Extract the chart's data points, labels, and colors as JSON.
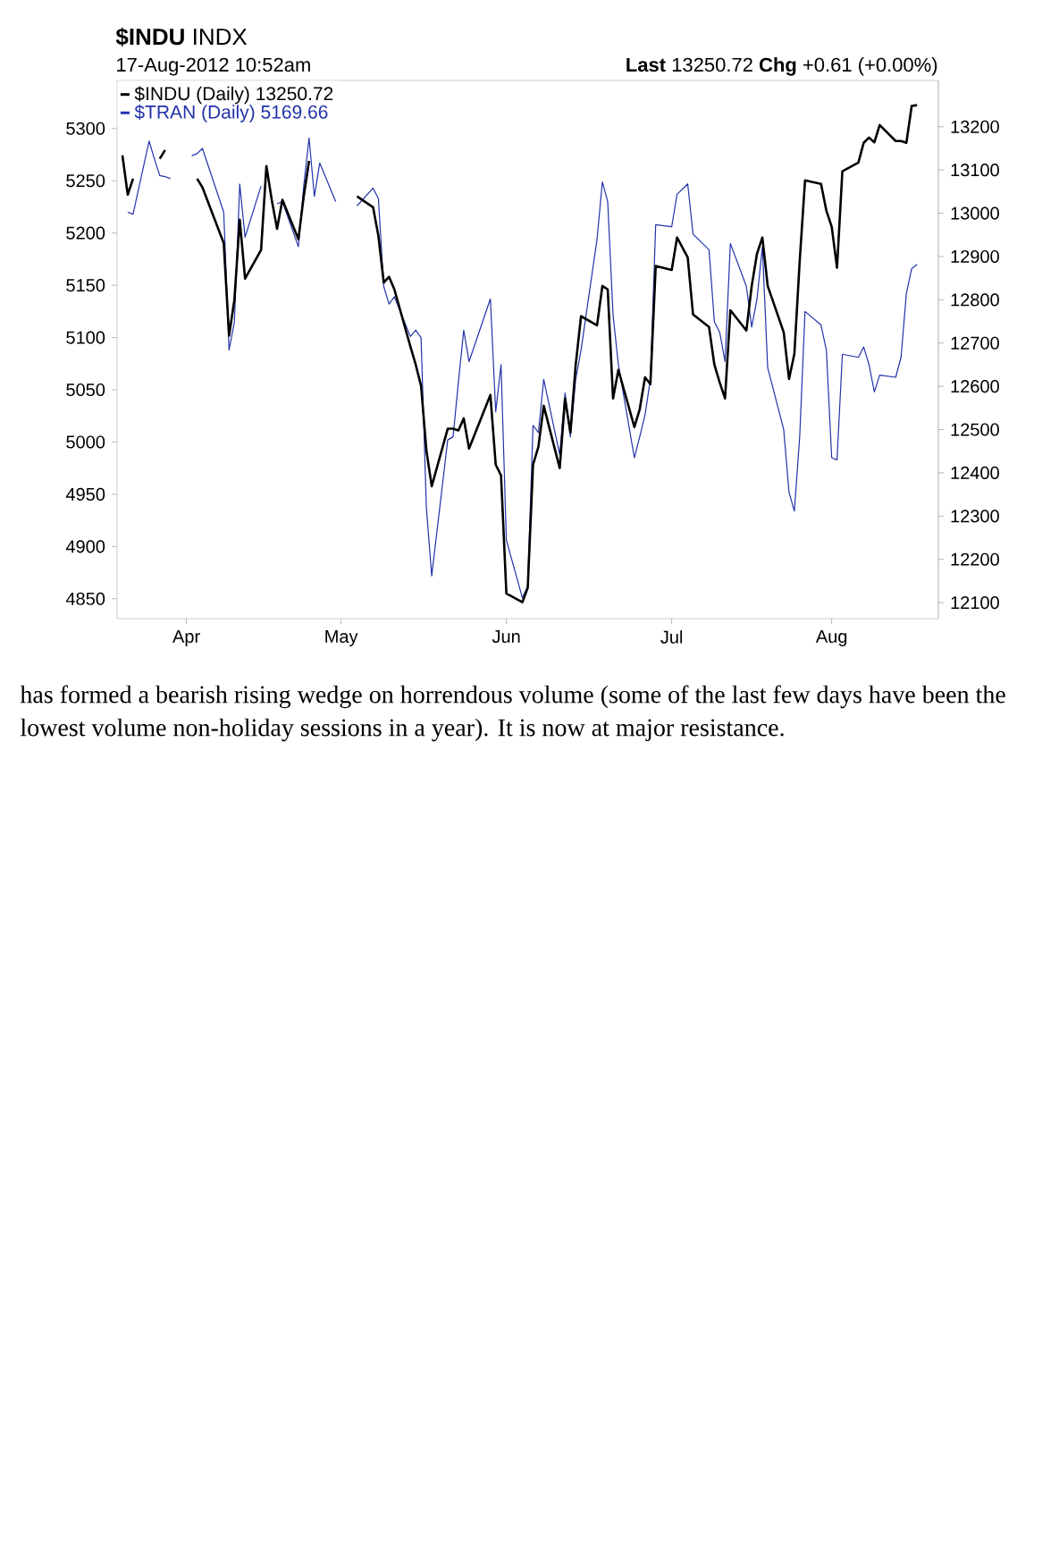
{
  "chart_data": {
    "type": "line",
    "title": "**$INDU** INDX",
    "subtitle": "17-Aug-2012 10:52am",
    "annotations": [
      "**Last** 13250.72 **Chg** +0.61 (+0.00%)",
      "has formed a bearish rising wedge on horrendous volume (some of the last few days have been the lowest volume non-holiday sessions in a year). It is now at major resistance."
    ],
    "x": [
      "2012-03-21",
      "2012-03-22",
      "2012-03-23",
      "2012-03-26",
      "2012-03-27",
      "2012-03-28",
      "2012-03-29",
      "2012-03-30",
      "2012-04-02",
      "2012-04-03",
      "2012-04-04",
      "2012-04-05",
      "2012-04-09",
      "2012-04-10",
      "2012-04-11",
      "2012-04-12",
      "2012-04-13",
      "2012-04-16",
      "2012-04-17",
      "2012-04-18",
      "2012-04-19",
      "2012-04-20",
      "2012-04-23",
      "2012-04-24",
      "2012-04-25",
      "2012-04-26",
      "2012-04-27",
      "2012-04-30",
      "2012-05-01",
      "2012-05-02",
      "2012-05-03",
      "2012-05-04",
      "2012-05-07",
      "2012-05-08",
      "2012-05-09",
      "2012-05-10",
      "2012-05-11",
      "2012-05-14",
      "2012-05-15",
      "2012-05-16",
      "2012-05-17",
      "2012-05-18",
      "2012-05-21",
      "2012-05-22",
      "2012-05-23",
      "2012-05-24",
      "2012-05-25",
      "2012-05-29",
      "2012-05-30",
      "2012-05-31",
      "2012-06-01",
      "2012-06-04",
      "2012-06-05",
      "2012-06-06",
      "2012-06-07",
      "2012-06-08",
      "2012-06-11",
      "2012-06-12",
      "2012-06-13",
      "2012-06-14",
      "2012-06-15",
      "2012-06-18",
      "2012-06-19",
      "2012-06-20",
      "2012-06-21",
      "2012-06-22",
      "2012-06-25",
      "2012-06-26",
      "2012-06-27",
      "2012-06-28",
      "2012-06-29",
      "2012-07-02",
      "2012-07-03",
      "2012-07-05",
      "2012-07-06",
      "2012-07-09",
      "2012-07-10",
      "2012-07-11",
      "2012-07-12",
      "2012-07-13",
      "2012-07-16",
      "2012-07-17",
      "2012-07-18",
      "2012-07-19",
      "2012-07-20",
      "2012-07-23",
      "2012-07-24",
      "2012-07-25",
      "2012-07-26",
      "2012-07-27",
      "2012-07-30",
      "2012-07-31",
      "2012-08-01",
      "2012-08-02",
      "2012-08-03",
      "2012-08-06",
      "2012-08-07",
      "2012-08-08",
      "2012-08-09",
      "2012-08-10",
      "2012-08-13",
      "2012-08-14",
      "2012-08-15",
      "2012-08-16",
      "2012-08-17"
    ],
    "series": [
      {
        "name": "$INDU (Daily) 13250.72",
        "color": "#000000",
        "axis": "y2",
        "values": [
          13134,
          13043,
          13080,
          null,
          null,
          13126,
          13146,
          null,
          null,
          null,
          13080,
          13060,
          12931,
          12717,
          12800,
          12985,
          12849,
          12915,
          13109,
          13031,
          12964,
          13031,
          12940,
          13039,
          13121,
          null,
          null,
          null,
          null,
          null,
          null,
          13039,
          13014,
          12948,
          12840,
          12853,
          12824,
          12692,
          12650,
          12601,
          12452,
          12369,
          12502,
          12502,
          12498,
          12526,
          12456,
          12580,
          12419,
          12394,
          12121,
          12101,
          12134,
          12419,
          12460,
          12555,
          12411,
          12572,
          12493,
          12650,
          12762,
          12741,
          12832,
          12824,
          12572,
          12638,
          12506,
          12547,
          12621,
          12605,
          12878,
          12869,
          12944,
          12898,
          12766,
          12737,
          12650,
          12609,
          12572,
          12776,
          12729,
          12832,
          12907,
          12944,
          12832,
          12725,
          12617,
          12675,
          12890,
          13076,
          13068,
          13006,
          12969,
          12874,
          13097,
          13117,
          13163,
          13175,
          13164,
          13204,
          13167,
          13167,
          13163,
          13248,
          13250
        ]
      },
      {
        "name": "$TRAN (Daily) 5169.66",
        "color": "#2233aa",
        "values": [
          null,
          5220,
          5218,
          5288,
          5271,
          5255,
          5254,
          5252,
          null,
          5274,
          5276,
          5281,
          5220,
          5088,
          5115,
          5247,
          5196,
          5245,
          null,
          null,
          5228,
          5230,
          5187,
          5245,
          5291,
          5235,
          5267,
          5230,
          null,
          null,
          null,
          5226,
          5243,
          5233,
          5149,
          5132,
          5139,
          5101,
          5107,
          5100,
          4937,
          4872,
          5002,
          5005,
          5057,
          5107,
          5077,
          5137,
          5029,
          5074,
          4906,
          4851,
          4862,
          5016,
          5009,
          5060,
          4988,
          5047,
          5005,
          5060,
          5088,
          5194,
          5249,
          5230,
          5122,
          5074,
          4985,
          5005,
          5026,
          5060,
          5208,
          5206,
          5237,
          5247,
          5199,
          5184,
          5115,
          5105,
          5077,
          5190,
          5149,
          5110,
          5137,
          5187,
          5071,
          5012,
          4952,
          4934,
          5005,
          5125,
          5112,
          5088,
          4985,
          4983,
          5084,
          5081,
          5091,
          5074,
          5048,
          5064,
          5062,
          5081,
          5142,
          5166,
          5170
        ]
      }
    ],
    "xlim": [
      "2012-03-20",
      "2012-08-21"
    ],
    "xticks": [
      {
        "value": "2012-04-02",
        "label": "Apr"
      },
      {
        "value": "2012-05-01",
        "label": "May"
      },
      {
        "value": "2012-06-01",
        "label": "Jun"
      },
      {
        "value": "2012-07-02",
        "label": "Jul"
      },
      {
        "value": "2012-08-01",
        "label": "Aug"
      }
    ],
    "ylim": [
      4831,
      5346
    ],
    "yticks": [
      4850,
      4900,
      4950,
      5000,
      5050,
      5100,
      5150,
      5200,
      5250,
      5300
    ],
    "y2lim": [
      12063,
      13307
    ],
    "y2ticks": [
      12100,
      12200,
      12300,
      12400,
      12500,
      12600,
      12700,
      12800,
      12900,
      13000,
      13100,
      13200
    ],
    "legend": "top left",
    "marker": "none"
  }
}
